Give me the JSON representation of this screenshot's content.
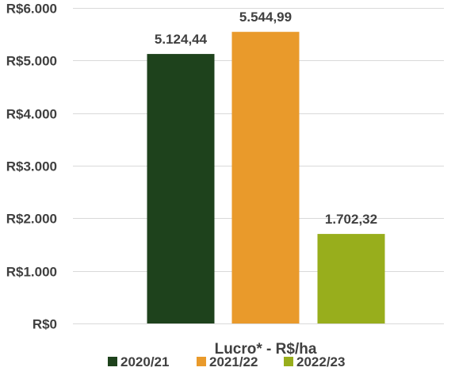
{
  "chart_data": {
    "type": "bar",
    "categories": [
      "2020/21",
      "2021/22",
      "2022/23"
    ],
    "values": [
      5124.44,
      5544.99,
      1702.32
    ],
    "data_labels": [
      "5.124,44",
      "5.544,99",
      "1.702,32"
    ],
    "colors": [
      "#1e421c",
      "#e99a2b",
      "#98ae1c"
    ],
    "xlabel": "Lucro* - R$/ha",
    "ylabel": "",
    "title": "",
    "ylim": [
      0,
      6000
    ],
    "yticks": [
      0,
      1000,
      2000,
      3000,
      4000,
      5000,
      6000
    ],
    "ytick_labels": [
      "R$0",
      "R$1.000",
      "R$2.000",
      "R$3.000",
      "R$4.000",
      "R$5.000",
      "R$6.000"
    ],
    "legend": [
      "2020/21",
      "2021/22",
      "2022/23"
    ],
    "legend_position": "bottom",
    "grid": true
  }
}
